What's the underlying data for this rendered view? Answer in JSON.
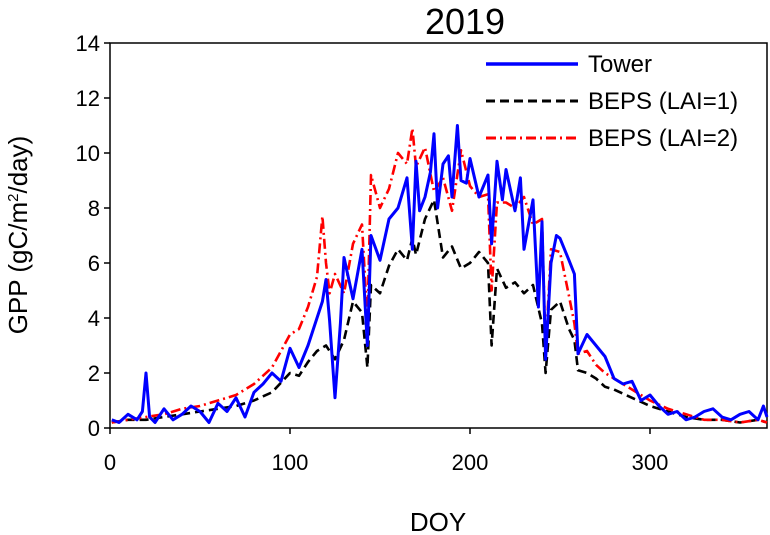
{
  "chart_data": {
    "type": "line",
    "title": "2019",
    "xlabel": "DOY",
    "ylabel_parts": [
      "GPP (gC/m",
      "2",
      "/day)"
    ],
    "xlim": [
      0,
      365
    ],
    "ylim": [
      0,
      14
    ],
    "xticks": [
      0,
      100,
      200,
      300
    ],
    "yticks": [
      0,
      2,
      4,
      6,
      8,
      10,
      12,
      14
    ],
    "xtick_labels": [
      "0",
      "100",
      "200",
      "300"
    ],
    "ytick_labels": [
      "0",
      "2",
      "4",
      "6",
      "8",
      "10",
      "12",
      "14"
    ],
    "legend_position": "top-right",
    "series": [
      {
        "name": "Tower",
        "color": "#0000ff",
        "style": "solid",
        "x": [
          1,
          5,
          10,
          15,
          18,
          20,
          22,
          25,
          30,
          35,
          40,
          45,
          50,
          55,
          60,
          65,
          70,
          75,
          80,
          85,
          90,
          95,
          100,
          105,
          110,
          115,
          118,
          120,
          122,
          125,
          128,
          130,
          135,
          140,
          143,
          145,
          150,
          155,
          160,
          165,
          168,
          170,
          172,
          175,
          178,
          180,
          182,
          185,
          188,
          190,
          193,
          195,
          198,
          200,
          205,
          210,
          212,
          215,
          218,
          220,
          225,
          228,
          230,
          235,
          238,
          240,
          242,
          245,
          248,
          250,
          255,
          258,
          260,
          265,
          270,
          275,
          280,
          285,
          290,
          295,
          300,
          305,
          310,
          315,
          320,
          325,
          330,
          335,
          340,
          345,
          350,
          355,
          360,
          363,
          365
        ],
        "y": [
          0.3,
          0.2,
          0.5,
          0.3,
          0.6,
          2.0,
          0.4,
          0.2,
          0.7,
          0.3,
          0.5,
          0.8,
          0.6,
          0.2,
          0.9,
          0.6,
          1.1,
          0.4,
          1.3,
          1.6,
          2.0,
          1.7,
          2.9,
          2.2,
          3.0,
          4.0,
          4.6,
          5.4,
          3.9,
          1.1,
          3.8,
          6.2,
          4.7,
          6.5,
          3.0,
          7.0,
          6.1,
          7.6,
          8.0,
          9.1,
          6.5,
          9.7,
          7.9,
          8.4,
          9.3,
          10.7,
          8.0,
          9.6,
          9.9,
          8.4,
          11.0,
          9.0,
          8.9,
          9.8,
          8.4,
          9.2,
          6.7,
          9.7,
          8.3,
          9.4,
          7.9,
          9.1,
          6.5,
          8.3,
          4.4,
          7.5,
          2.5,
          6.0,
          7.0,
          6.9,
          6.1,
          5.6,
          2.7,
          3.4,
          3.0,
          2.6,
          1.8,
          1.6,
          1.7,
          1.0,
          1.2,
          0.8,
          0.5,
          0.6,
          0.3,
          0.4,
          0.6,
          0.7,
          0.4,
          0.3,
          0.5,
          0.6,
          0.3,
          0.8,
          0.4
        ]
      },
      {
        "name": "BEPS (LAI=1)",
        "color": "#000000",
        "style": "dashed",
        "x": [
          1,
          10,
          20,
          30,
          40,
          50,
          60,
          70,
          80,
          90,
          100,
          105,
          110,
          115,
          120,
          125,
          130,
          135,
          140,
          143,
          145,
          150,
          155,
          160,
          165,
          168,
          170,
          175,
          180,
          185,
          190,
          195,
          200,
          205,
          210,
          212,
          215,
          220,
          225,
          230,
          235,
          240,
          242,
          245,
          250,
          255,
          258,
          260,
          265,
          270,
          275,
          280,
          290,
          300,
          310,
          320,
          330,
          340,
          350,
          360,
          365
        ],
        "y": [
          0.2,
          0.3,
          0.3,
          0.4,
          0.5,
          0.6,
          0.7,
          0.8,
          1.0,
          1.3,
          2.0,
          1.9,
          2.4,
          2.8,
          3.0,
          2.5,
          3.2,
          4.6,
          4.2,
          2.2,
          5.2,
          4.9,
          5.9,
          6.5,
          6.1,
          6.9,
          6.3,
          7.6,
          8.3,
          6.2,
          6.6,
          5.8,
          6.0,
          6.4,
          6.0,
          3.0,
          5.8,
          5.1,
          5.3,
          4.9,
          5.2,
          3.8,
          2.0,
          4.3,
          4.6,
          3.6,
          3.2,
          2.1,
          2.0,
          1.8,
          1.5,
          1.4,
          1.1,
          0.8,
          0.6,
          0.4,
          0.3,
          0.3,
          0.2,
          0.3,
          0.2
        ]
      },
      {
        "name": "BEPS (LAI=2)",
        "color": "#ff0000",
        "style": "dashdot",
        "x": [
          1,
          10,
          20,
          30,
          40,
          50,
          60,
          70,
          80,
          90,
          100,
          105,
          110,
          115,
          118,
          120,
          122,
          125,
          130,
          135,
          140,
          143,
          145,
          150,
          155,
          160,
          165,
          168,
          170,
          175,
          180,
          185,
          190,
          195,
          200,
          205,
          210,
          212,
          215,
          220,
          225,
          230,
          235,
          240,
          242,
          245,
          250,
          255,
          258,
          260,
          265,
          270,
          275,
          280,
          290,
          300,
          310,
          320,
          330,
          340,
          350,
          360,
          365
        ],
        "y": [
          0.2,
          0.3,
          0.4,
          0.5,
          0.7,
          0.8,
          1.0,
          1.2,
          1.6,
          2.2,
          3.4,
          3.6,
          4.4,
          5.5,
          7.7,
          6.0,
          4.9,
          5.6,
          4.9,
          6.7,
          7.4,
          3.9,
          9.2,
          8.0,
          8.7,
          10.0,
          9.6,
          10.9,
          9.5,
          10.2,
          8.6,
          9.1,
          7.9,
          10.1,
          8.8,
          8.4,
          8.5,
          5.0,
          8.2,
          8.2,
          8.0,
          8.4,
          7.4,
          7.6,
          2.8,
          6.5,
          6.4,
          4.8,
          3.8,
          2.7,
          2.8,
          2.3,
          2.0,
          1.8,
          1.4,
          1.0,
          0.7,
          0.5,
          0.3,
          0.3,
          0.2,
          0.3,
          0.2
        ]
      }
    ]
  }
}
